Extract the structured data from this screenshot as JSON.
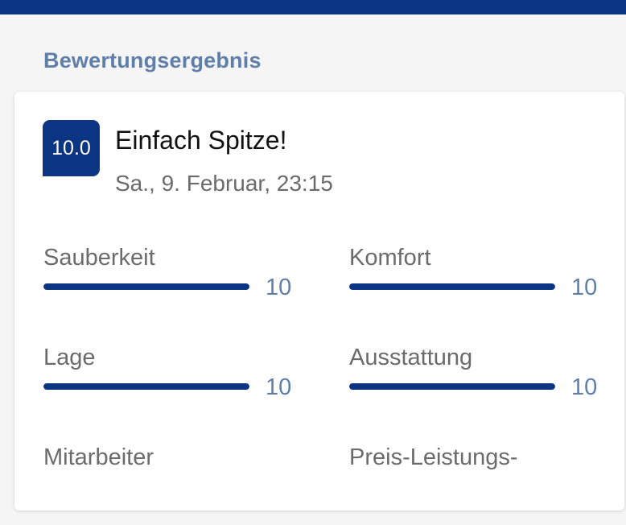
{
  "header": {
    "section_title": "Bewertungsergebnis"
  },
  "review": {
    "score": "10.0",
    "title": "Einfach Spitze!",
    "date": "Sa., 9. Februar, 23:15"
  },
  "ratings": [
    {
      "label": "Sauberkeit",
      "value": "10",
      "fraction": 1.0
    },
    {
      "label": "Komfort",
      "value": "10",
      "fraction": 1.0
    },
    {
      "label": "Lage",
      "value": "10",
      "fraction": 1.0
    },
    {
      "label": "Ausstattung",
      "value": "10",
      "fraction": 1.0
    },
    {
      "label": "Mitarbeiter"
    },
    {
      "label": "Preis-Leistungs-"
    }
  ],
  "colors": {
    "brand": "#0b3483",
    "accent_text": "#5f7fab",
    "background": "#f5f5f5"
  }
}
